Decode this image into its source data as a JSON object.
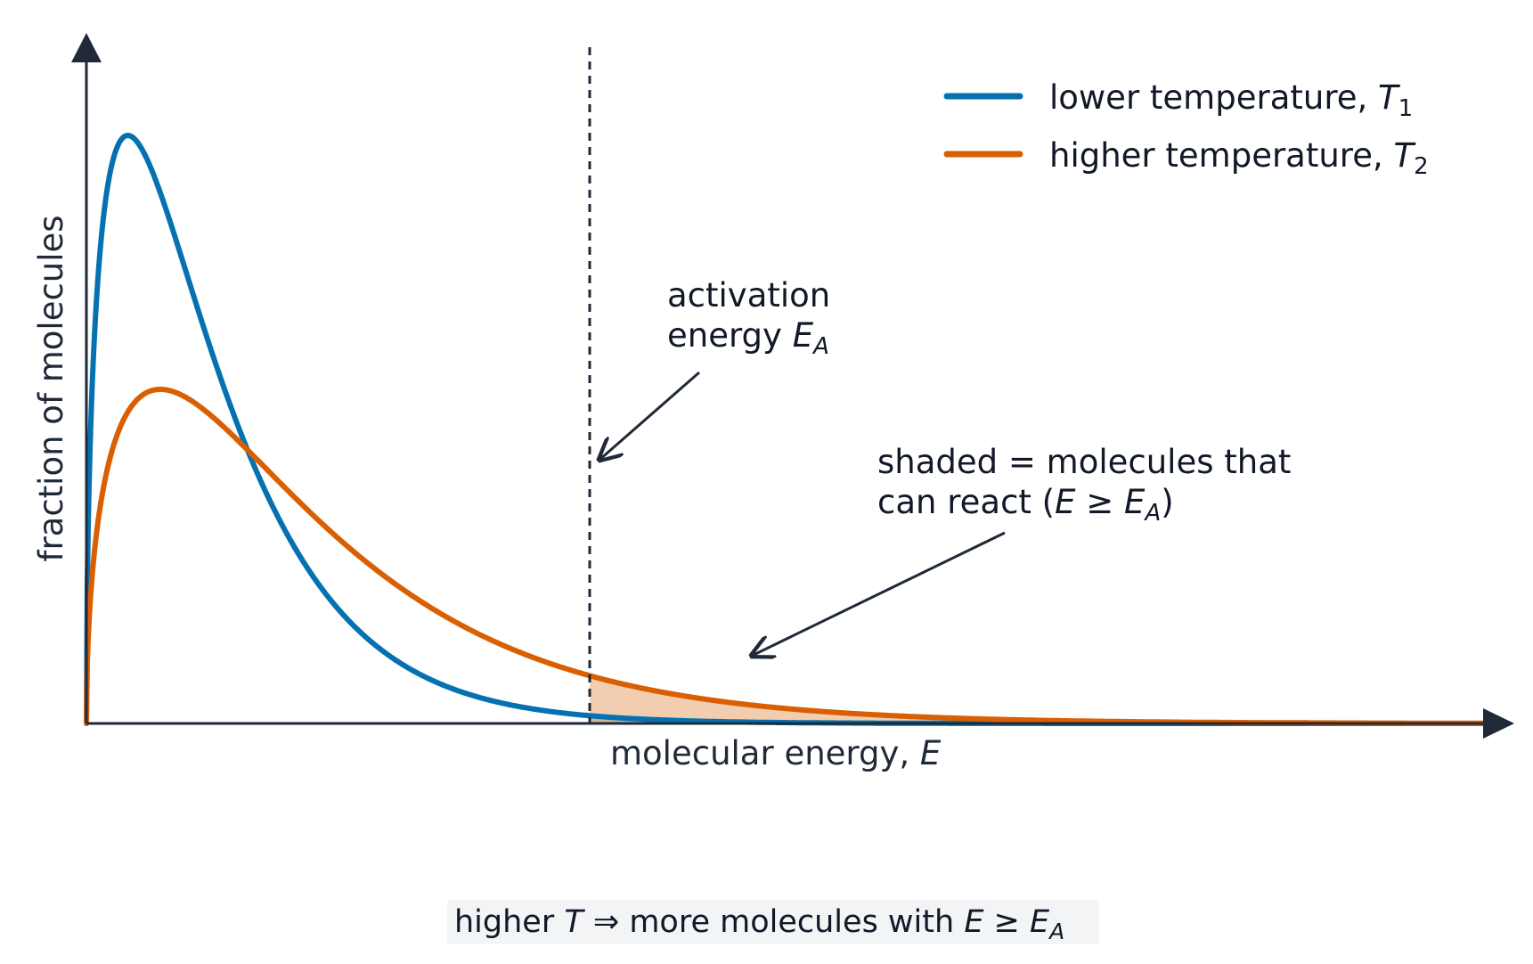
{
  "axes": {
    "xlabel": "molecular energy, ",
    "xlabel_var": "E",
    "ylabel": "fraction of molecules"
  },
  "legend": {
    "entries": [
      {
        "text": "lower temperature, ",
        "var": "T",
        "sub": "1",
        "color": "#0571b0"
      },
      {
        "text": "higher temperature, ",
        "var": "T",
        "sub": "2",
        "color": "#d95f02"
      }
    ]
  },
  "annotations": {
    "activation_line1": "activation",
    "activation_line2": "energy ",
    "activation_var": "E",
    "activation_sub": "A",
    "shaded_line1": "shaded = molecules that",
    "shaded_line2_a": "can react (",
    "shaded_line2_var1": "E",
    "shaded_line2_ge": " ≥ ",
    "shaded_line2_var2": "E",
    "shaded_line2_sub": "A",
    "shaded_line2_close": ")"
  },
  "caption": {
    "a": "higher ",
    "var1": "T",
    "arrow": " ⇒  more molecules with ",
    "var2": "E",
    "ge": " ≥ ",
    "var3": "E",
    "sub": "A"
  },
  "colors": {
    "axis": "#1f2937",
    "low_T": "#0571b0",
    "high_T": "#d95f02",
    "shade_high": "#f2cdb0",
    "shade_low": "#c9b4a0",
    "caption_bg": "#f3f4f6"
  }
}
